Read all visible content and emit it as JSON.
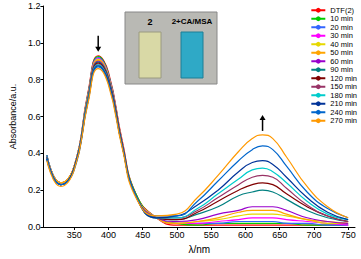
{
  "chart_data": {
    "type": "line",
    "x_label": "λ/nm",
    "y_label": "Absorbance/a.u.",
    "legend": "upper right",
    "grid": false,
    "annotations": [
      "2",
      "2+CA/MSA"
    ],
    "x": [
      310,
      330,
      350,
      370,
      385,
      400,
      420,
      440,
      470,
      500,
      530,
      560,
      590,
      610,
      625,
      640,
      660,
      690,
      720,
      750
    ],
    "xlim": [
      305,
      760
    ],
    "xticks": [
      350,
      400,
      450,
      500,
      550,
      600,
      650,
      700,
      750
    ],
    "ylim": [
      0,
      1.2
    ],
    "yticks": [
      {
        "value": 0,
        "label": "0.0"
      },
      {
        "value": 0.2,
        "label": "0.2"
      },
      {
        "value": 0.4,
        "label": "0.4"
      },
      {
        "value": 0.6,
        "label": "0.6"
      },
      {
        "value": 0.8,
        "label": "0.8"
      },
      {
        "value": 1.0,
        "label": "1.0"
      },
      {
        "value": 1.2,
        "label": "1.2"
      }
    ],
    "series": [
      {
        "name": "DTF(2)",
        "color": "#ff0000",
        "values": [
          0.39,
          0.24,
          0.33,
          0.73,
          0.93,
          0.84,
          0.47,
          0.18,
          0.05,
          0.01,
          0.01,
          0.01,
          0.01,
          0.01,
          0.01,
          0.01,
          0.01,
          0.01,
          0.01,
          0.01
        ]
      },
      {
        "name": "10 min",
        "color": "#00cc00",
        "values": [
          0.39,
          0.24,
          0.33,
          0.72,
          0.925,
          0.83,
          0.46,
          0.18,
          0.05,
          0.02,
          0.01,
          0.02,
          0.02,
          0.02,
          0.02,
          0.02,
          0.02,
          0.01,
          0.01,
          0.01
        ]
      },
      {
        "name": "20 min",
        "color": "#3366ff",
        "values": [
          0.39,
          0.24,
          0.33,
          0.72,
          0.92,
          0.83,
          0.46,
          0.17,
          0.05,
          0.02,
          0.02,
          0.02,
          0.03,
          0.03,
          0.03,
          0.03,
          0.02,
          0.02,
          0.01,
          0.01
        ]
      },
      {
        "name": "30 min",
        "color": "#ff00ff",
        "values": [
          0.38,
          0.24,
          0.33,
          0.71,
          0.915,
          0.82,
          0.46,
          0.17,
          0.05,
          0.02,
          0.02,
          0.03,
          0.04,
          0.05,
          0.05,
          0.05,
          0.04,
          0.03,
          0.02,
          0.01
        ]
      },
      {
        "name": "40 min",
        "color": "#e6d800",
        "values": [
          0.38,
          0.24,
          0.33,
          0.71,
          0.91,
          0.82,
          0.46,
          0.17,
          0.05,
          0.02,
          0.03,
          0.04,
          0.06,
          0.07,
          0.07,
          0.07,
          0.06,
          0.04,
          0.02,
          0.02
        ]
      },
      {
        "name": "50 min",
        "color": "#ffa500",
        "values": [
          0.38,
          0.24,
          0.33,
          0.71,
          0.905,
          0.81,
          0.45,
          0.17,
          0.05,
          0.02,
          0.03,
          0.05,
          0.08,
          0.09,
          0.09,
          0.09,
          0.07,
          0.04,
          0.03,
          0.02
        ]
      },
      {
        "name": "60 min",
        "color": "#9900cc",
        "values": [
          0.38,
          0.23,
          0.32,
          0.7,
          0.9,
          0.81,
          0.45,
          0.17,
          0.05,
          0.03,
          0.04,
          0.07,
          0.09,
          0.11,
          0.11,
          0.11,
          0.09,
          0.05,
          0.03,
          0.02
        ]
      },
      {
        "name": "90 min",
        "color": "#008080",
        "values": [
          0.38,
          0.23,
          0.32,
          0.7,
          0.895,
          0.81,
          0.45,
          0.17,
          0.05,
          0.04,
          0.07,
          0.11,
          0.17,
          0.19,
          0.2,
          0.19,
          0.15,
          0.09,
          0.05,
          0.03
        ]
      },
      {
        "name": "120 min",
        "color": "#800000",
        "values": [
          0.37,
          0.23,
          0.32,
          0.69,
          0.89,
          0.8,
          0.45,
          0.17,
          0.05,
          0.04,
          0.08,
          0.14,
          0.2,
          0.23,
          0.24,
          0.23,
          0.18,
          0.11,
          0.06,
          0.03
        ]
      },
      {
        "name": "150 min",
        "color": "#993366",
        "values": [
          0.37,
          0.23,
          0.32,
          0.69,
          0.885,
          0.8,
          0.44,
          0.17,
          0.05,
          0.05,
          0.09,
          0.16,
          0.23,
          0.27,
          0.28,
          0.27,
          0.21,
          0.12,
          0.06,
          0.03
        ]
      },
      {
        "name": "180 min",
        "color": "#00cccc",
        "values": [
          0.37,
          0.23,
          0.32,
          0.69,
          0.88,
          0.79,
          0.44,
          0.17,
          0.05,
          0.05,
          0.1,
          0.18,
          0.26,
          0.31,
          0.32,
          0.3,
          0.24,
          0.14,
          0.07,
          0.04
        ]
      },
      {
        "name": "210 min",
        "color": "#003399",
        "values": [
          0.37,
          0.23,
          0.32,
          0.68,
          0.875,
          0.79,
          0.44,
          0.17,
          0.05,
          0.06,
          0.12,
          0.2,
          0.3,
          0.35,
          0.36,
          0.34,
          0.27,
          0.16,
          0.08,
          0.04
        ]
      },
      {
        "name": "240 min",
        "color": "#0066cc",
        "values": [
          0.37,
          0.23,
          0.31,
          0.68,
          0.87,
          0.78,
          0.44,
          0.17,
          0.06,
          0.06,
          0.14,
          0.25,
          0.36,
          0.42,
          0.44,
          0.42,
          0.33,
          0.19,
          0.1,
          0.05
        ]
      },
      {
        "name": "270 min",
        "color": "#ff9900",
        "values": [
          0.36,
          0.22,
          0.31,
          0.67,
          0.86,
          0.77,
          0.43,
          0.16,
          0.06,
          0.07,
          0.16,
          0.28,
          0.41,
          0.48,
          0.5,
          0.48,
          0.38,
          0.22,
          0.11,
          0.05
        ]
      }
    ]
  }
}
